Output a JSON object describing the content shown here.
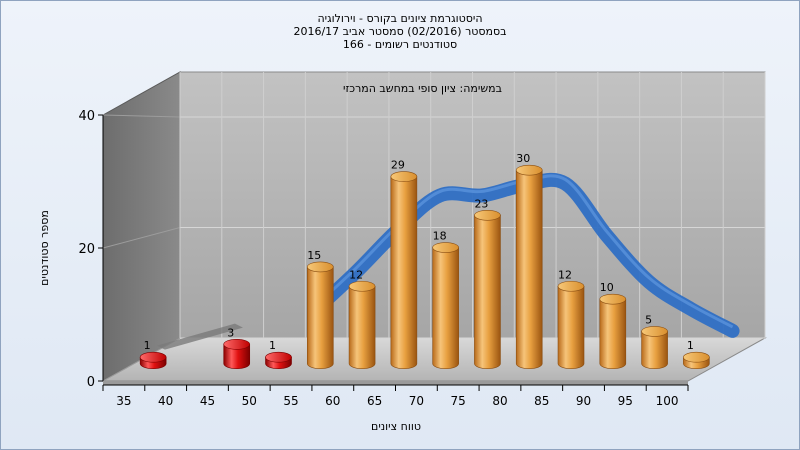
{
  "chart_data": {
    "type": "bar",
    "title": "היסטוגרמת ציונים בקורס - וירולוגיה",
    "subtitle": "בסמסטר  (02/2016)  סמסטר אביב 2016/17",
    "subtitle2": "סטודנטים רשומים - 166",
    "annotation": "במשימה: ציון סופי במחשב המרכזי",
    "xlabel": "טווח ציונים",
    "ylabel": "מספר סטודנטים",
    "categories": [
      "35",
      "40",
      "45",
      "50",
      "55",
      "60",
      "65",
      "70",
      "75",
      "80",
      "85",
      "90",
      "95",
      "100"
    ],
    "x_tick_labels": [
      "35",
      "40",
      "45",
      "50",
      "55",
      "60",
      "65",
      "70",
      "75",
      "80",
      "85",
      "90",
      "95",
      "100"
    ],
    "y_ticks": [
      "0",
      "20",
      "40"
    ],
    "ylim": [
      0,
      40
    ],
    "series": [
      {
        "values": [
          1,
          0,
          3,
          1,
          15,
          12,
          29,
          18,
          23,
          30,
          12,
          10,
          5,
          1
        ]
      }
    ],
    "bar_colors": [
      "#e01010",
      null,
      "#e01010",
      "#e01010",
      "#e8a040",
      "#e8a040",
      "#e8a040",
      "#e8a040",
      "#e8a040",
      "#e8a040",
      "#e8a040",
      "#e8a040",
      "#e8a040",
      "#e8a040"
    ],
    "curve_color": "#2f6fc4",
    "grid": true
  }
}
